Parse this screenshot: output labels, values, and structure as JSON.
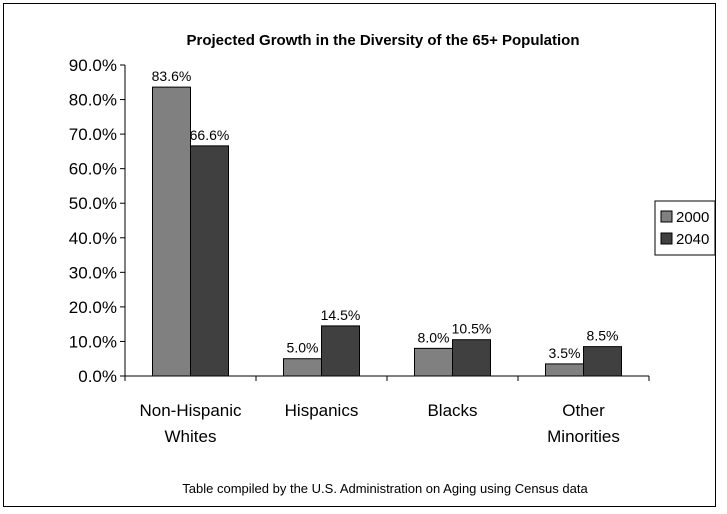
{
  "chart_data": {
    "type": "bar",
    "title": "Projected Growth in the Diversity of the 65+ Population",
    "xlabel": "",
    "ylabel": "",
    "ylim": [
      0,
      90
    ],
    "y_ticks": [
      "0.0%",
      "10.0%",
      "20.0%",
      "30.0%",
      "40.0%",
      "50.0%",
      "60.0%",
      "70.0%",
      "80.0%",
      "90.0%"
    ],
    "categories": [
      [
        "Non-Hispanic",
        "Whites"
      ],
      [
        "Hispanics"
      ],
      [
        "Blacks"
      ],
      [
        "Other",
        "Minorities"
      ]
    ],
    "series": [
      {
        "name": "2000",
        "color": "#808080",
        "values": [
          83.6,
          5.0,
          8.0,
          3.5
        ],
        "labels": [
          "83.6%",
          "5.0%",
          "8.0%",
          "3.5%"
        ]
      },
      {
        "name": "2040",
        "color": "#404040",
        "values": [
          66.6,
          14.5,
          10.5,
          8.5
        ],
        "labels": [
          "66.6%",
          "14.5%",
          "10.5%",
          "8.5%"
        ]
      }
    ],
    "legend_position": "right",
    "grid": false,
    "footnote": "Table compiled by the U.S. Administration on Aging using Census data"
  }
}
